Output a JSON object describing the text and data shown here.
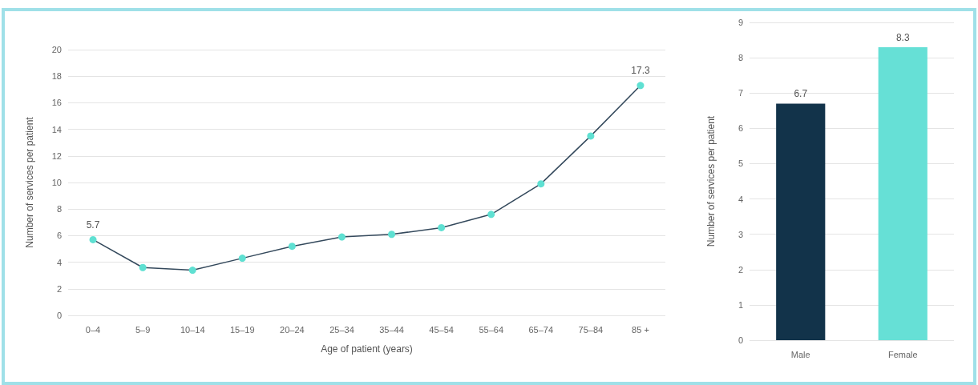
{
  "chart_data": [
    {
      "type": "line",
      "xlabel": "Age of patient (years)",
      "ylabel": "Number of services per patient",
      "categories": [
        "0–4",
        "5–9",
        "10–14",
        "15–19",
        "20–24",
        "25–34",
        "35–44",
        "45–54",
        "55–64",
        "65–74",
        "75–84",
        "85 +"
      ],
      "series": [
        {
          "color": "#34495c",
          "colors": [
            "#5fe0d2",
            "#5fe0d2",
            "#5fe0d2",
            "#5fe0d2",
            "#5fe0d2",
            "#5fe0d2",
            "#5fe0d2",
            "#5fe0d2",
            "#5fe0d2",
            "#5fe0d2",
            "#5fe0d2",
            "#5fe0d2"
          ],
          "values": [
            5.7,
            3.6,
            3.4,
            4.3,
            5.2,
            5.9,
            6.1,
            6.6,
            7.6,
            9.9,
            13.5,
            17.3
          ],
          "value_labels": [
            "5.7",
            null,
            null,
            null,
            null,
            null,
            null,
            null,
            null,
            null,
            null,
            "17.3"
          ]
        }
      ],
      "ylim": [
        0,
        20
      ],
      "yticks": [
        0,
        2,
        4,
        6,
        8,
        10,
        12,
        14,
        16,
        18,
        20
      ],
      "grid": "y",
      "marker": "circle",
      "line_style": "solid"
    },
    {
      "type": "bar",
      "ylabel": "Number of services per patient",
      "categories": [
        "Male",
        "Female"
      ],
      "values": [
        6.7,
        8.3
      ],
      "colors": [
        "#12334a",
        "#66e0d6"
      ],
      "ylim": [
        0,
        9
      ],
      "yticks": [
        0,
        1,
        2,
        3,
        4,
        5,
        6,
        7,
        8,
        9
      ],
      "grid": "y",
      "data_labels": true
    }
  ]
}
